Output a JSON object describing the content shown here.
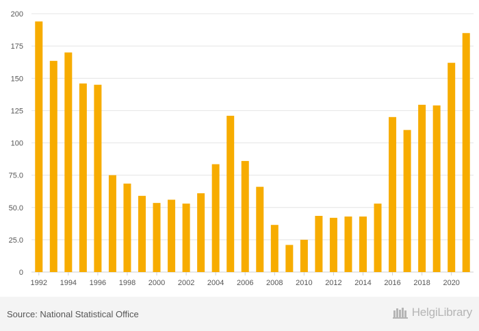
{
  "chart_data": {
    "type": "bar",
    "categories": [
      "1992",
      "1993",
      "1994",
      "1995",
      "1996",
      "1997",
      "1998",
      "1999",
      "2000",
      "2001",
      "2002",
      "2003",
      "2004",
      "2005",
      "2006",
      "2007",
      "2008",
      "2009",
      "2010",
      "2011",
      "2012",
      "2013",
      "2014",
      "2015",
      "2016",
      "2017",
      "2018",
      "2019",
      "2020",
      "2021"
    ],
    "values": [
      194,
      163.5,
      170,
      146,
      145,
      75,
      68.5,
      59,
      53.5,
      56,
      53,
      61,
      83.5,
      121,
      86,
      66,
      36.5,
      21,
      25,
      43.5,
      42,
      43,
      43,
      53,
      120,
      110,
      129.5,
      129,
      162,
      185
    ],
    "title": "",
    "xlabel": "",
    "ylabel": "",
    "ylim": [
      0,
      200
    ],
    "yticks": [
      "0",
      "25.0",
      "50.0",
      "75.0",
      "100",
      "125",
      "150",
      "175",
      "200"
    ],
    "xtick_labels": [
      "1992",
      "1994",
      "1996",
      "1998",
      "2000",
      "2002",
      "2004",
      "2006",
      "2008",
      "2010",
      "2012",
      "2014",
      "2016",
      "2018",
      "2020"
    ],
    "bar_color": "#f7ac00",
    "grid": true
  },
  "footer": {
    "source": "Source: National Statistical Office",
    "brand_name": "HelgiLibrary",
    "brand_icon": "library-logo-icon"
  }
}
